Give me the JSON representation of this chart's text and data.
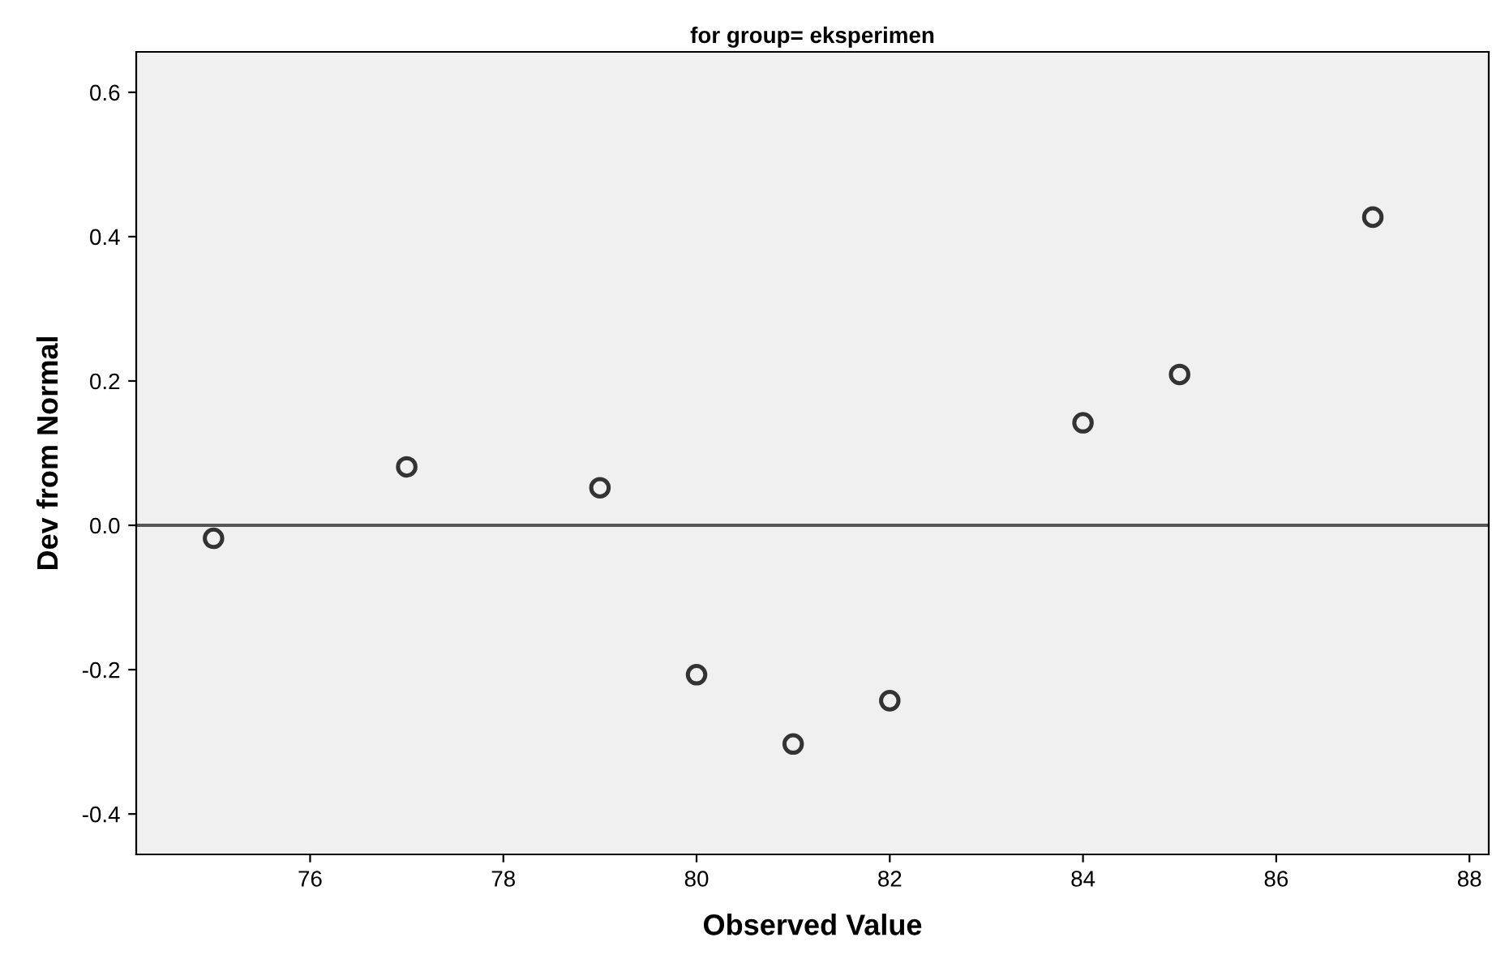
{
  "chart_data": {
    "type": "scatter",
    "title": "for group= eksperimen",
    "xlabel": "Observed Value",
    "ylabel": "Dev from Normal",
    "x": [
      75,
      77,
      79,
      80,
      81,
      82,
      84,
      85,
      87
    ],
    "series": [
      {
        "color": "#333333",
        "values": [
          -0.018,
          0.081,
          0.052,
          -0.207,
          -0.303,
          -0.243,
          0.142,
          0.209,
          0.427
        ]
      }
    ],
    "xlim": [
      74.2,
      88.2
    ],
    "xticks": [
      76,
      78,
      80,
      82,
      84,
      86,
      88
    ],
    "ylim": [
      -0.456,
      0.656
    ],
    "yticks": [
      {
        "value": -0.4,
        "label": "-0.4"
      },
      {
        "value": -0.2,
        "label": "-0.2"
      },
      {
        "value": 0.0,
        "label": "0.0"
      },
      {
        "value": 0.2,
        "label": "0.2"
      },
      {
        "value": 0.4,
        "label": "0.4"
      },
      {
        "value": 0.6,
        "label": "0.6"
      }
    ],
    "ref_lines": [
      {
        "axis": "y",
        "value": 0,
        "color": "#555555",
        "line_style": "solid"
      }
    ],
    "marker": "circle",
    "grid": false,
    "legend": false
  }
}
